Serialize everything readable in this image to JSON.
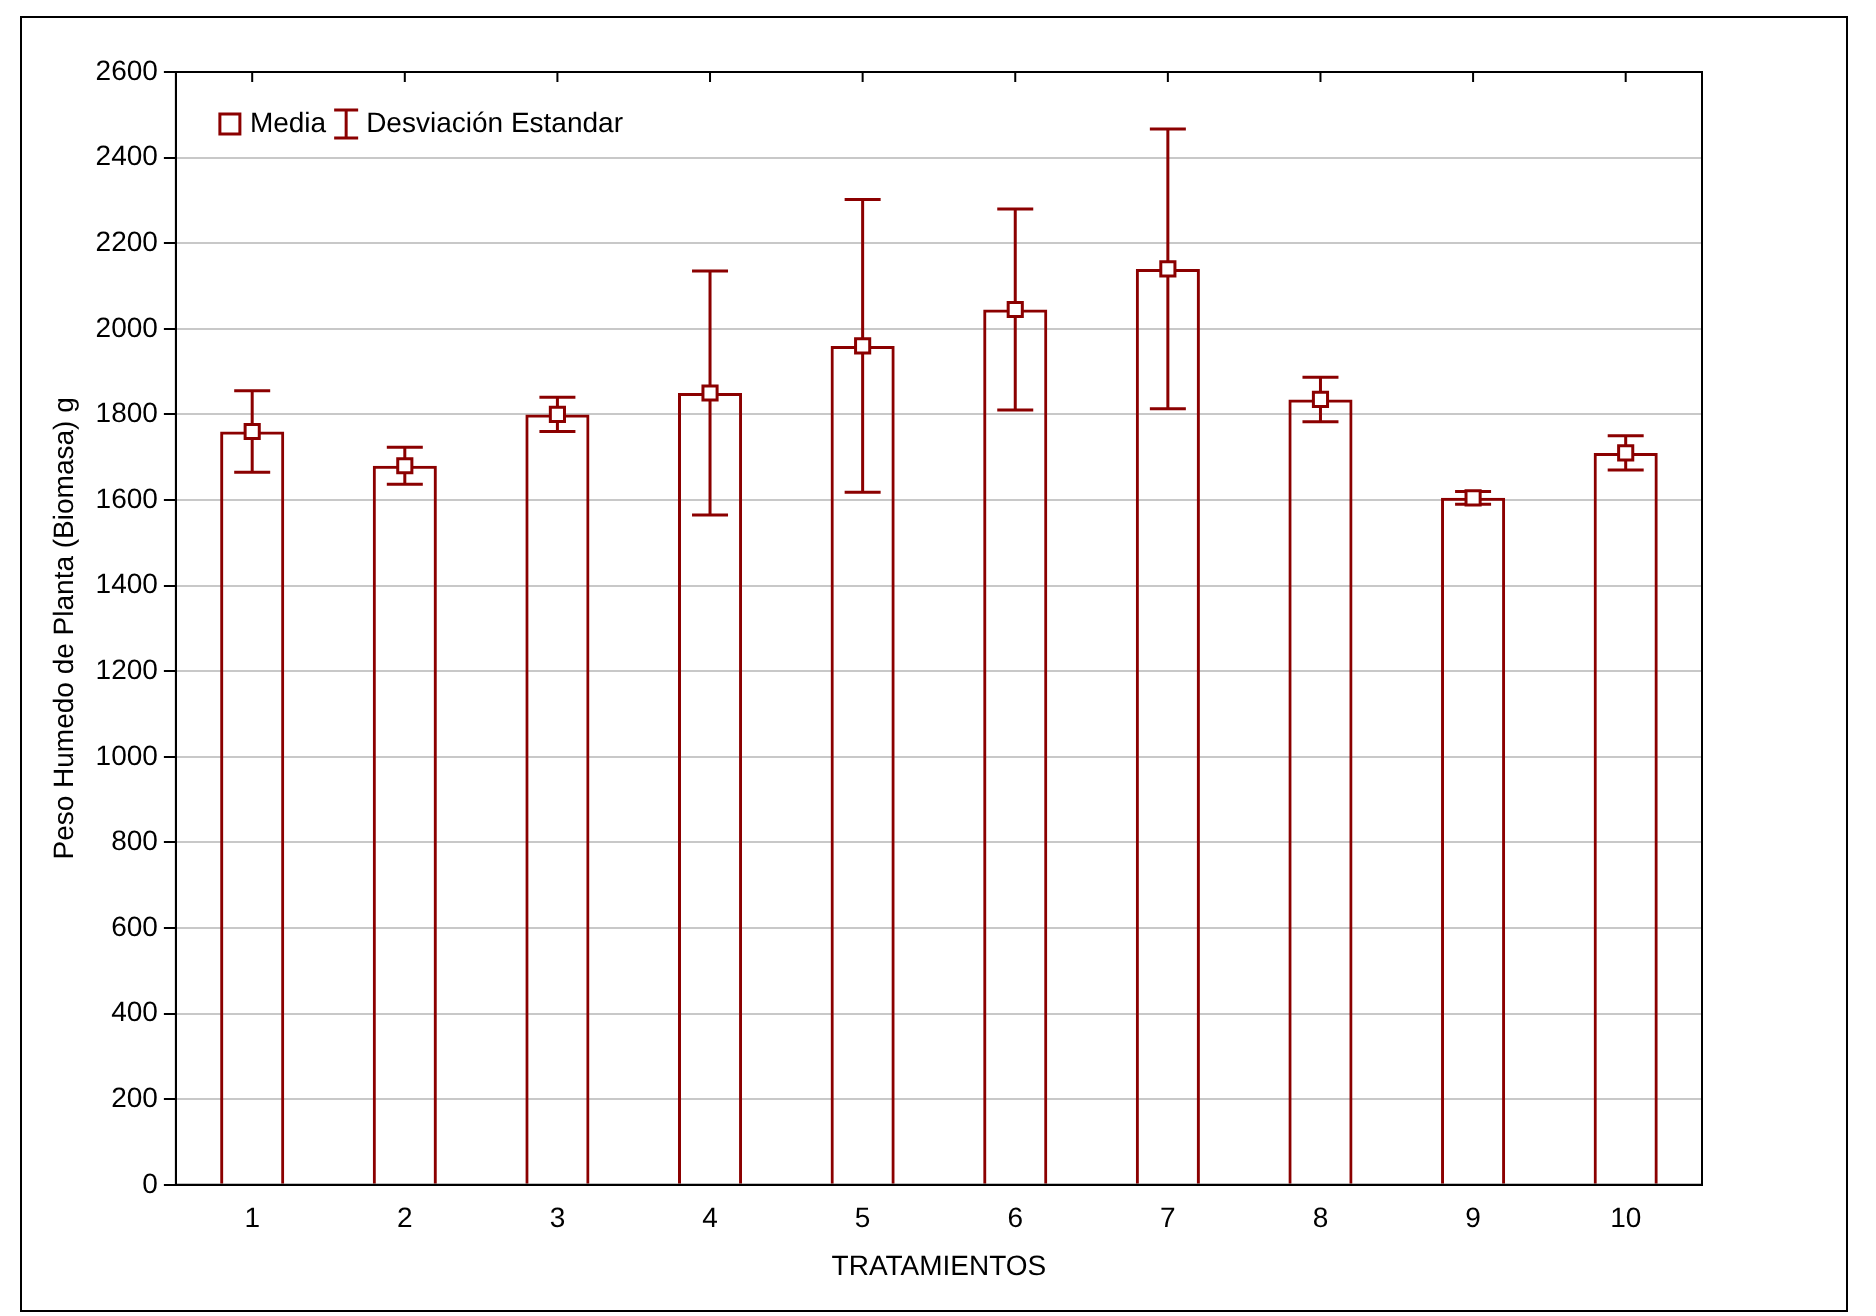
{
  "chart_data": {
    "type": "bar",
    "xlabel": "TRATAMIENTOS",
    "ylabel": "Peso Humedo de Planta (Biomasa) g",
    "categories": [
      "1",
      "2",
      "3",
      "4",
      "5",
      "6",
      "7",
      "8",
      "9",
      "10"
    ],
    "series": [
      {
        "color": "#8b0000",
        "values": [
          1760,
          1680,
          1800,
          1850,
          1960,
          2045,
          2140,
          1835,
          1605,
          1710
        ]
      },
      {
        "type": "scatter",
        "name": "Media",
        "color": "#8b0000",
        "x": [
          "1",
          "2",
          "3",
          "4",
          "5",
          "6",
          "7",
          "8",
          "9",
          "10"
        ],
        "values": [
          1760,
          1680,
          1800,
          1850,
          1960,
          2045,
          2140,
          1835,
          1605,
          1710
        ],
        "errors": [
          95,
          43,
          40,
          285,
          342,
          235,
          327,
          52,
          15,
          40
        ]
      }
    ],
    "annotations": [
      "Desviación Estandar"
    ],
    "marker": "square",
    "grid": "y",
    "legend": "top left",
    "ylim": [
      0,
      2600
    ],
    "yticks": [
      0,
      200,
      400,
      600,
      800,
      1000,
      1200,
      1400,
      1600,
      1800,
      2000,
      2200,
      2400,
      2600
    ]
  }
}
